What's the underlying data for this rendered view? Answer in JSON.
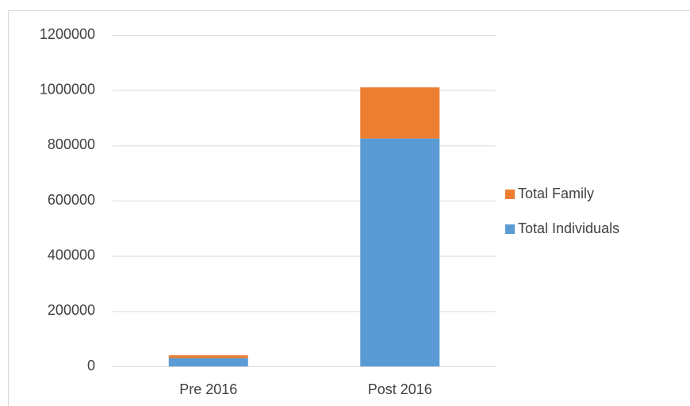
{
  "chart_data": {
    "type": "stacked_bar",
    "categories": [
      "Pre 2016",
      "Post 2016"
    ],
    "series": [
      {
        "name": "Total Individuals",
        "color": "#5b9bd5",
        "values": [
          30000,
          825000
        ]
      },
      {
        "name": "Total Family",
        "color": "#ed7d31",
        "values": [
          10000,
          185000
        ]
      }
    ],
    "ylim": [
      0,
      1200000
    ],
    "yticks": [
      0,
      200000,
      400000,
      600000,
      800000,
      1000000,
      1200000
    ],
    "grid": true,
    "legend": "right"
  }
}
